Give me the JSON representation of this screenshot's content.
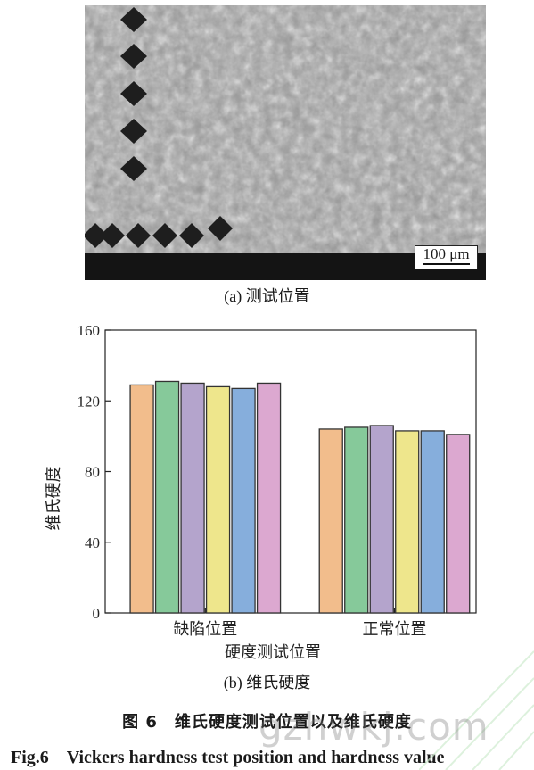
{
  "micrograph": {
    "scale_label": "100 μm"
  },
  "caption_a": "(a) 测试位置",
  "caption_b": "(b) 维氏硬度",
  "figure_title_cn": "图 6　维氏硬度测试位置以及维氏硬度",
  "figure_title_en": "Fig.6　Vickers hardness test position and hardness value",
  "watermark": "gzhwkj.com",
  "chart_data": {
    "type": "bar",
    "categories": [
      "缺陷位置",
      "正常位置"
    ],
    "series": [
      {
        "values": [
          129,
          104
        ],
        "color": "#f2bd8c"
      },
      {
        "values": [
          131,
          105
        ],
        "color": "#86c99a"
      },
      {
        "values": [
          130,
          106
        ],
        "color": "#b4a4cc"
      },
      {
        "values": [
          128,
          103
        ],
        "color": "#eee68c"
      },
      {
        "values": [
          127,
          103
        ],
        "color": "#86aedc"
      },
      {
        "values": [
          130,
          101
        ],
        "color": "#dca8d0"
      }
    ],
    "xlabel": "硬度测试位置",
    "ylabel": "维氏硬度",
    "ylim": [
      0,
      160
    ],
    "yticks": [
      "0",
      "40",
      "80",
      "120",
      "160"
    ],
    "grid": false,
    "legend": "none"
  }
}
